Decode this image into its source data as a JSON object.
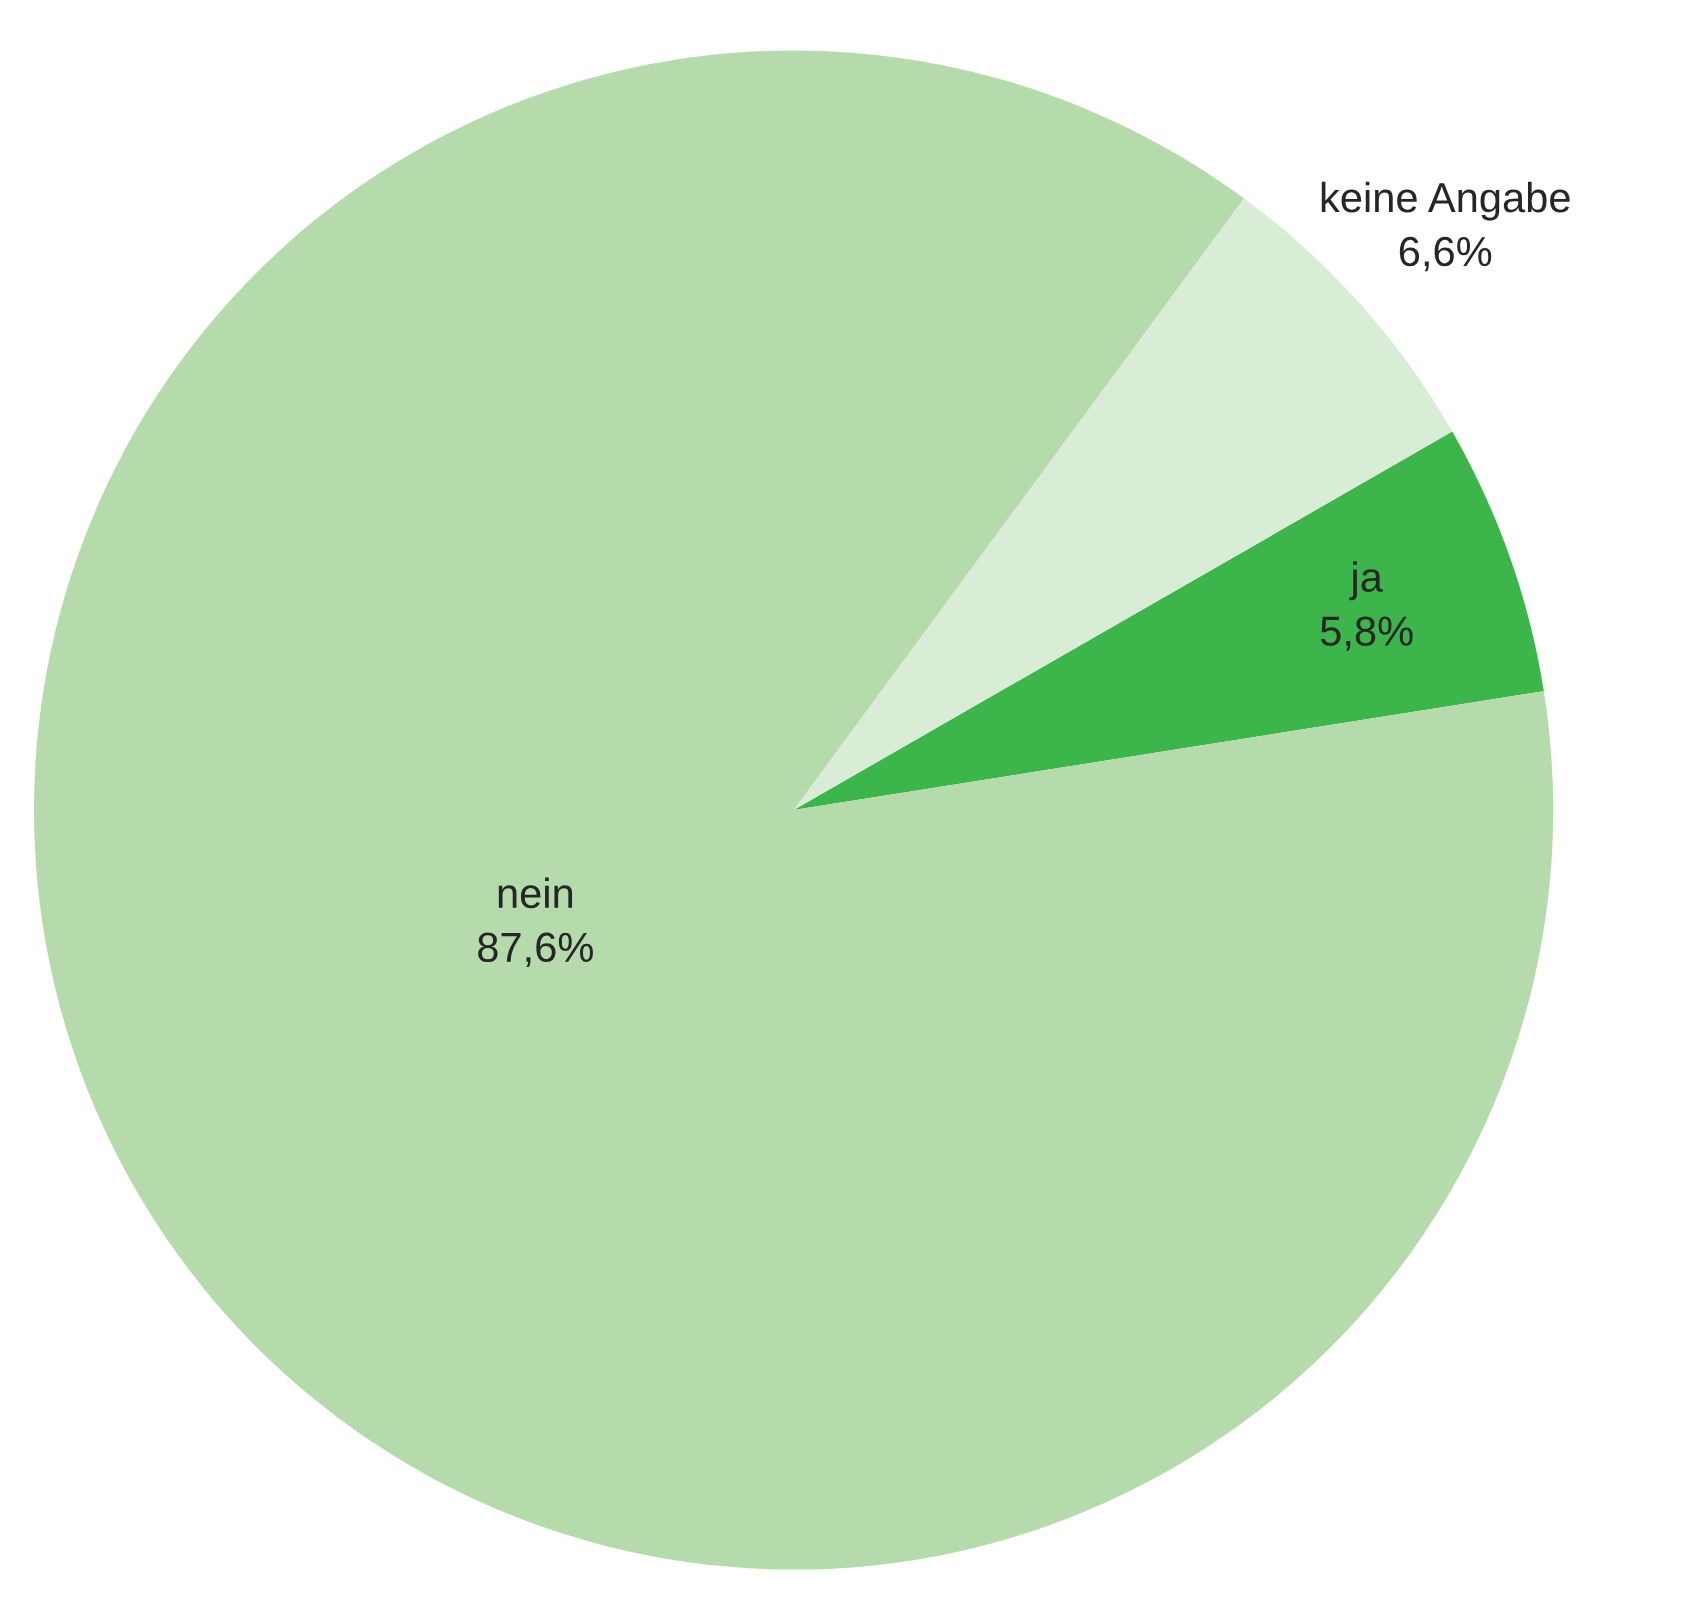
{
  "chart_data": {
    "type": "pie",
    "categories": [
      "ja",
      "keine Angabe",
      "nein"
    ],
    "values": [
      5.8,
      6.6,
      87.6
    ],
    "value_labels": [
      "5,8%",
      "6,6%",
      "87,6%"
    ],
    "colors": [
      "#3cb54a",
      "#d9ecd5",
      "#b5dbad"
    ]
  }
}
